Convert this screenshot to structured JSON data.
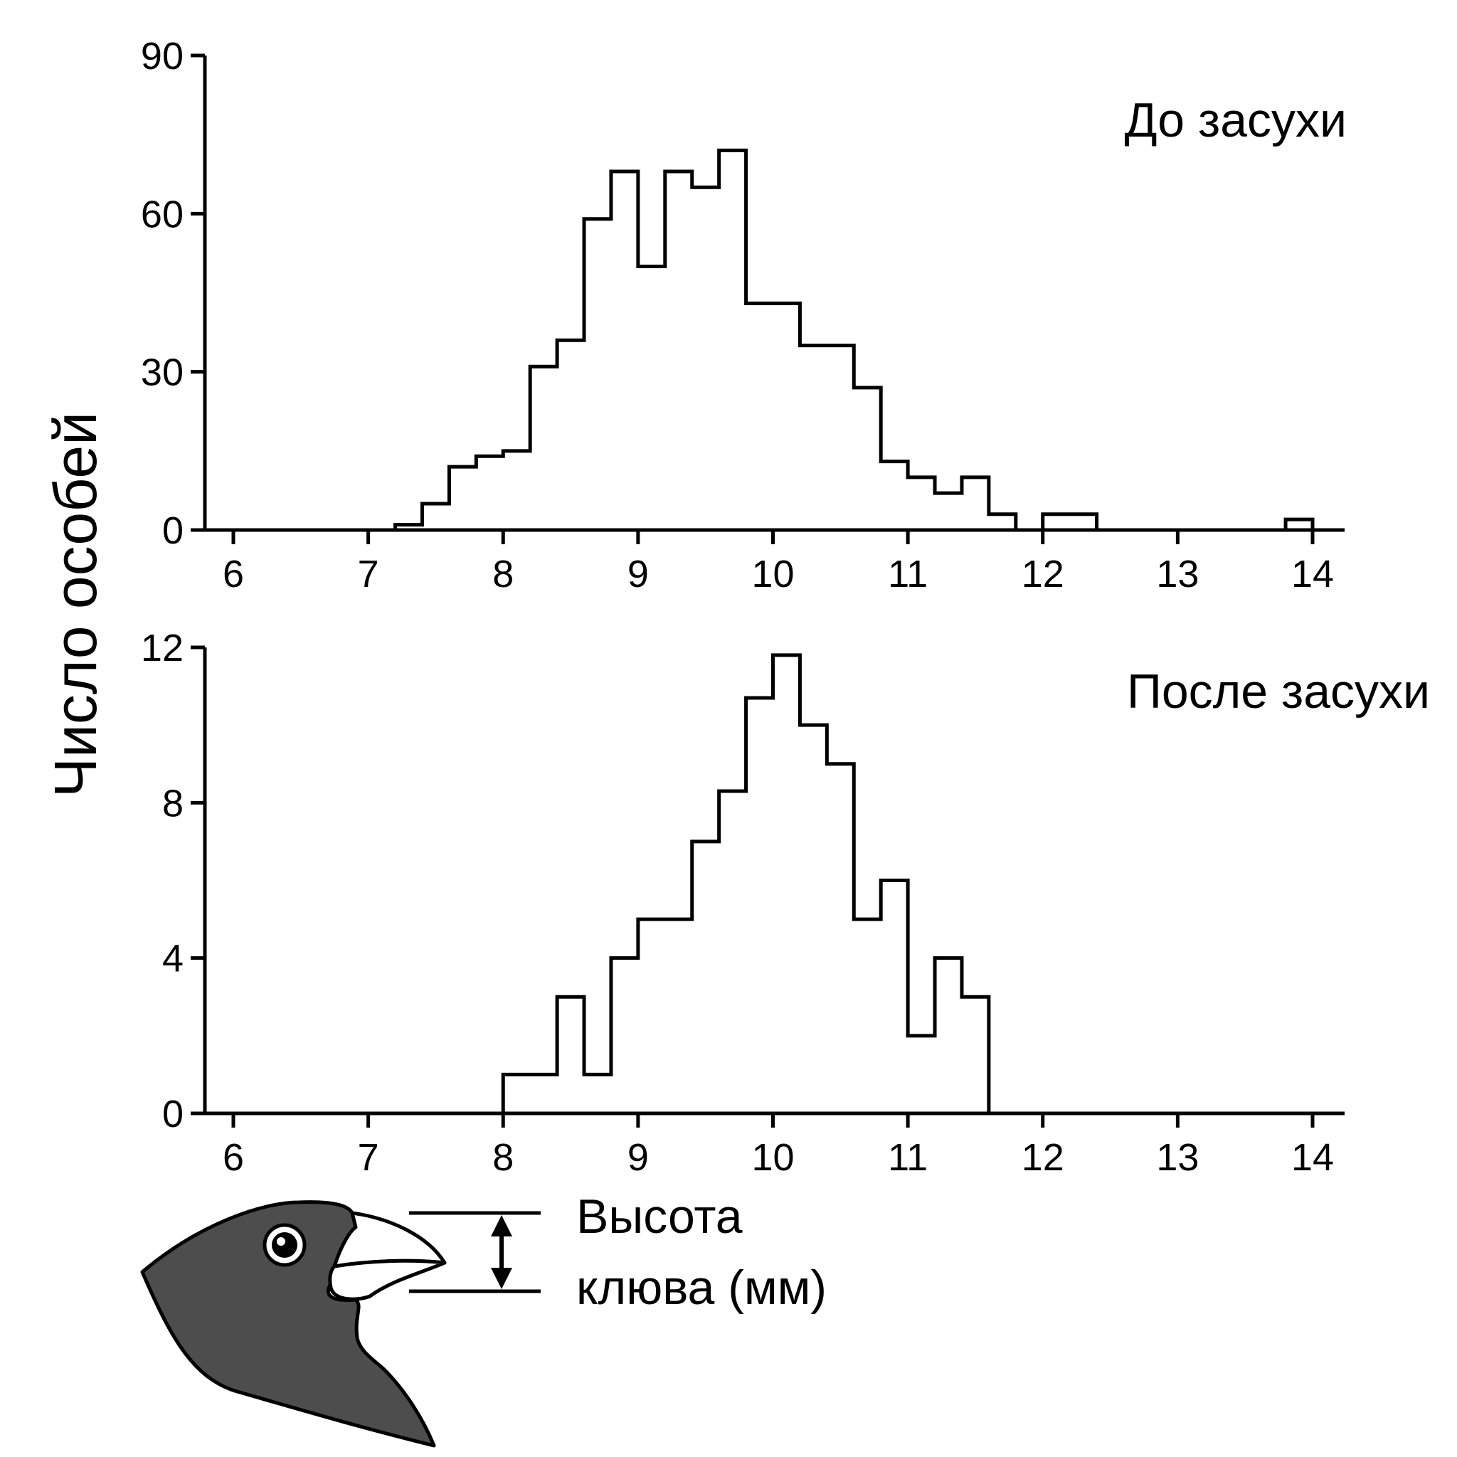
{
  "chart_data": [
    {
      "type": "histogram",
      "title": "До засухи",
      "ylabel": "Число особей",
      "xlabel": "Высота клюва (мм)",
      "xlim": [
        6,
        14
      ],
      "ylim": [
        0,
        90
      ],
      "xticks": [
        6,
        7,
        8,
        9,
        10,
        11,
        12,
        13,
        14
      ],
      "yticks": [
        0,
        30,
        60,
        90
      ],
      "bin_width": 0.2,
      "bin_start": 7.2,
      "counts": [
        1,
        5,
        12,
        14,
        15,
        31,
        36,
        59,
        68,
        50,
        68,
        65,
        72,
        43,
        43,
        35,
        35,
        27,
        13,
        10,
        7,
        10,
        3,
        0,
        3,
        3,
        0,
        0,
        0,
        0,
        0,
        0,
        0,
        2
      ]
    },
    {
      "type": "histogram",
      "title": "После засухи",
      "ylabel": "Число особей",
      "xlabel": "Высота клюва (мм)",
      "xlim": [
        6,
        14
      ],
      "ylim": [
        0,
        12
      ],
      "xticks": [
        6,
        7,
        8,
        9,
        10,
        11,
        12,
        13,
        14
      ],
      "yticks": [
        0,
        4,
        8,
        12
      ],
      "bin_width": 0.2,
      "bin_start": 8.0,
      "counts": [
        1,
        1,
        3,
        1,
        4,
        5,
        5,
        7,
        8.3,
        10.7,
        11.8,
        10,
        9,
        5,
        6,
        2,
        4,
        3
      ]
    }
  ],
  "ylabel_text": "Число особей",
  "measure_label_line1": "Высота",
  "measure_label_line2": "клюва (мм)",
  "colors": {
    "bird_fill": "#4d4d4d",
    "line": "#000000",
    "beak_fill": "#ffffff"
  }
}
